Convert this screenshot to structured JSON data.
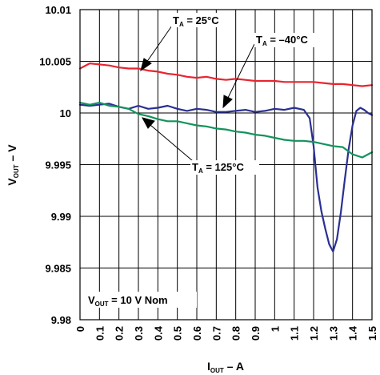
{
  "chart_data": {
    "type": "line",
    "xlabel": "I",
    "xlabel_sub": "OUT",
    "xlabel_unit": " – A",
    "ylabel": "V",
    "ylabel_sub": "OUT",
    "ylabel_unit": " – V",
    "xlim": [
      0,
      1.5
    ],
    "ylim": [
      9.98,
      10.01
    ],
    "x_ticks": [
      "0",
      "0.1",
      "0.2",
      "0.3",
      "0.4",
      "0.5",
      "0.6",
      "0.7",
      "0.8",
      "0.9",
      "1",
      "1.1",
      "1.2",
      "1.3",
      "1.4",
      "1.5"
    ],
    "y_ticks": [
      "9.98",
      "9.985",
      "9.99",
      "9.995",
      "10",
      "10.005",
      "10.01"
    ],
    "grid": true,
    "annotations": {
      "ta25": {
        "prefix": "T",
        "sub": "A",
        "suffix": " = 25°C"
      },
      "tam40": {
        "prefix": "T",
        "sub": "A",
        "suffix": " = –40°C"
      },
      "ta125": {
        "prefix": "T",
        "sub": "A",
        "suffix": " = 125°C"
      },
      "vnom": {
        "prefix": "V",
        "sub": "OUT",
        "suffix": " = 10 V Nom"
      }
    },
    "series": [
      {
        "key": "t25",
        "color": "#e8252f",
        "x": [
          0.0,
          0.05,
          0.1,
          0.15,
          0.2,
          0.25,
          0.3,
          0.35,
          0.4,
          0.45,
          0.5,
          0.55,
          0.6,
          0.65,
          0.7,
          0.75,
          0.8,
          0.85,
          0.9,
          0.95,
          1.0,
          1.05,
          1.1,
          1.15,
          1.2,
          1.25,
          1.3,
          1.35,
          1.4,
          1.45,
          1.5
        ],
        "values": [
          10.0043,
          10.0048,
          10.0047,
          10.0046,
          10.0044,
          10.0043,
          10.0043,
          10.0041,
          10.004,
          10.0038,
          10.0037,
          10.0035,
          10.0034,
          10.0035,
          10.0033,
          10.0032,
          10.0033,
          10.0032,
          10.0031,
          10.0031,
          10.0031,
          10.003,
          10.003,
          10.003,
          10.003,
          10.0029,
          10.0028,
          10.0028,
          10.0027,
          10.0026,
          10.0027
        ]
      },
      {
        "key": "tm40",
        "color": "#2a2f93",
        "x": [
          0.0,
          0.05,
          0.1,
          0.15,
          0.2,
          0.25,
          0.3,
          0.35,
          0.4,
          0.45,
          0.5,
          0.55,
          0.6,
          0.65,
          0.7,
          0.75,
          0.8,
          0.85,
          0.9,
          0.95,
          1.0,
          1.05,
          1.1,
          1.15,
          1.18,
          1.2,
          1.22,
          1.24,
          1.26,
          1.28,
          1.3,
          1.32,
          1.34,
          1.36,
          1.38,
          1.4,
          1.42,
          1.44,
          1.46,
          1.48,
          1.5
        ],
        "values": [
          10.0008,
          10.0007,
          10.0008,
          10.0009,
          10.0006,
          10.0004,
          10.0007,
          10.0004,
          10.0005,
          10.0007,
          10.0004,
          10.0002,
          10.0004,
          10.0003,
          10.0001,
          10.0001,
          10.0002,
          10.0003,
          10.0001,
          10.0002,
          10.0004,
          10.0003,
          10.0005,
          10.0003,
          9.9995,
          9.9968,
          9.9928,
          9.9905,
          9.9888,
          9.9873,
          9.9866,
          9.9878,
          9.9904,
          9.9935,
          9.9965,
          9.9988,
          10.0002,
          10.0005,
          10.0003,
          10.0,
          9.9998
        ]
      },
      {
        "key": "t125",
        "color": "#13935b",
        "x": [
          0.0,
          0.05,
          0.1,
          0.15,
          0.2,
          0.25,
          0.3,
          0.35,
          0.4,
          0.45,
          0.5,
          0.55,
          0.6,
          0.65,
          0.7,
          0.75,
          0.8,
          0.85,
          0.9,
          0.95,
          1.0,
          1.05,
          1.1,
          1.15,
          1.2,
          1.25,
          1.3,
          1.35,
          1.4,
          1.45,
          1.5
        ],
        "values": [
          10.001,
          10.0008,
          10.001,
          10.0007,
          10.0006,
          10.0004,
          9.9999,
          9.9997,
          9.9994,
          9.9992,
          9.9992,
          9.999,
          9.9988,
          9.9987,
          9.9985,
          9.9984,
          9.9982,
          9.9981,
          9.9979,
          9.9978,
          9.9976,
          9.9974,
          9.9973,
          9.9973,
          9.9972,
          9.997,
          9.9968,
          9.9967,
          9.996,
          9.9957,
          9.9962
        ]
      }
    ]
  }
}
